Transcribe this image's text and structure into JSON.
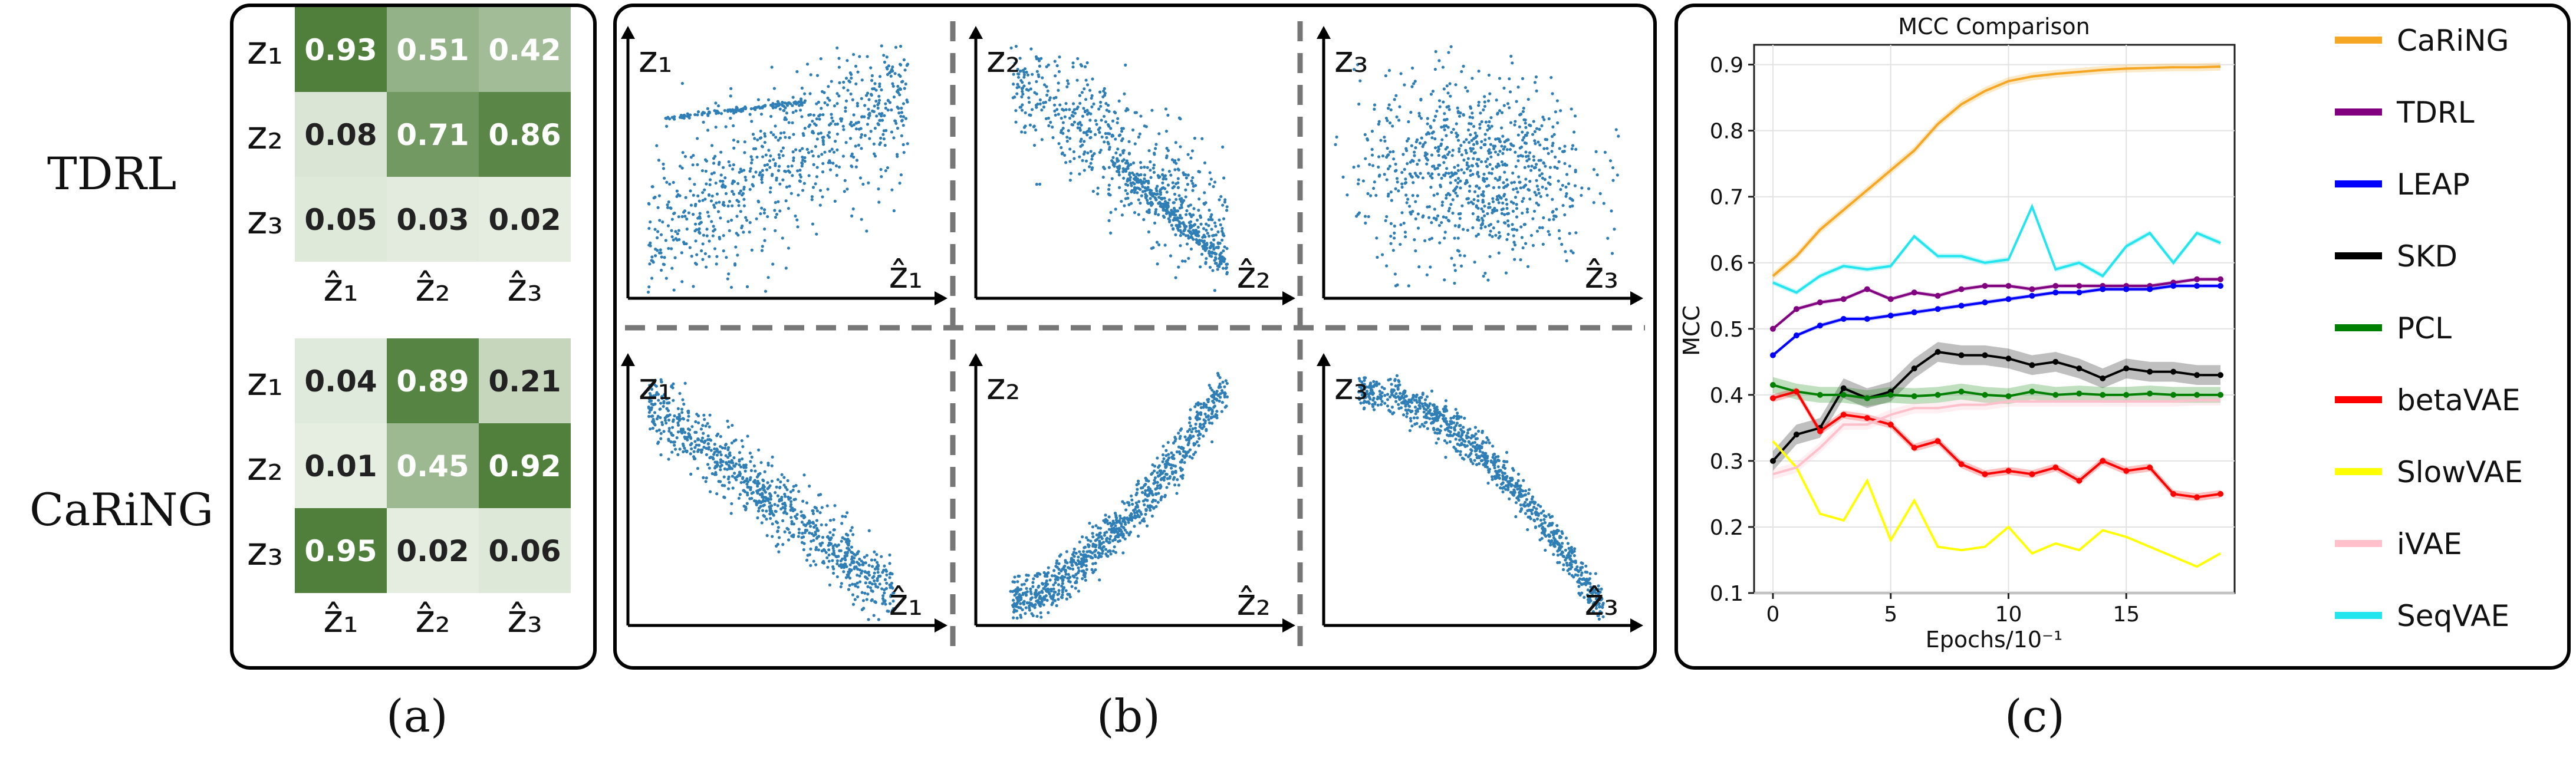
{
  "panel_a": {
    "row_labels": [
      "TDRL",
      "CaRiNG"
    ],
    "caption": "(a)",
    "tdrl": {
      "rows": [
        "z₁",
        "z₂",
        "z₃"
      ],
      "cols": [
        "ẑ₁",
        "ẑ₂",
        "ẑ₃"
      ],
      "values": [
        [
          0.93,
          0.51,
          0.42
        ],
        [
          0.08,
          0.71,
          0.86
        ],
        [
          0.05,
          0.03,
          0.02
        ]
      ],
      "labels": [
        [
          "0.93",
          "0.51",
          "0.42"
        ],
        [
          "0.08",
          "0.71",
          "0.86"
        ],
        [
          "0.05",
          "0.03",
          "0.02"
        ]
      ]
    },
    "caring": {
      "rows": [
        "z₁",
        "z₂",
        "z₃"
      ],
      "cols": [
        "ẑ₁",
        "ẑ₂",
        "ẑ₃"
      ],
      "values": [
        [
          0.04,
          0.89,
          0.21
        ],
        [
          0.01,
          0.45,
          0.92
        ],
        [
          0.95,
          0.02,
          0.06
        ]
      ],
      "labels": [
        [
          "0.04",
          "0.89",
          "0.21"
        ],
        [
          "0.01",
          "0.45",
          "0.92"
        ],
        [
          "0.95",
          "0.02",
          "0.06"
        ]
      ]
    },
    "colors": {
      "low": "#e7efe3",
      "high": "#4f7f3b"
    }
  },
  "panel_b": {
    "caption": "(b)",
    "point_color": "#2f7fb6",
    "plots": [
      {
        "ylabel": "z₁",
        "xlabel": "ẑ₁",
        "pattern": "tdrl1"
      },
      {
        "ylabel": "z₂",
        "xlabel": "ẑ₂",
        "pattern": "tdrl2"
      },
      {
        "ylabel": "z₃",
        "xlabel": "ẑ₃",
        "pattern": "tdrl3"
      },
      {
        "ylabel": "z₁",
        "xlabel": "ẑ₁",
        "pattern": "neg"
      },
      {
        "ylabel": "z₂",
        "xlabel": "ẑ₂",
        "pattern": "pos"
      },
      {
        "ylabel": "z₃",
        "xlabel": "ẑ₃",
        "pattern": "negcurve"
      }
    ]
  },
  "panel_c": {
    "caption": "(c)"
  },
  "chart_data": {
    "type": "line",
    "title": "MCC Comparison",
    "xlabel": "Epochs/10⁻¹",
    "ylabel": "MCC",
    "xlim": [
      -0.8,
      19.6
    ],
    "ylim": [
      0.1,
      0.93
    ],
    "xticks": [
      0,
      5,
      10,
      15
    ],
    "xtick_labels": [
      "0",
      "5",
      "10",
      "15"
    ],
    "yticks": [
      0.1,
      0.2,
      0.3,
      0.4,
      0.5,
      0.6,
      0.7,
      0.8,
      0.9
    ],
    "ytick_labels": [
      "0.1",
      "0.2",
      "0.3",
      "0.4",
      "0.5",
      "0.6",
      "0.7",
      "0.8",
      "0.9"
    ],
    "grid": true,
    "legend_position": "right-outside",
    "x": [
      0,
      1,
      2,
      3,
      4,
      5,
      6,
      7,
      8,
      9,
      10,
      11,
      12,
      13,
      14,
      15,
      16,
      17,
      18,
      19
    ],
    "series": [
      {
        "name": "CaRiNG",
        "color": "#f5a623",
        "markers": false,
        "band": 0.006,
        "values": [
          0.58,
          0.61,
          0.65,
          0.68,
          0.71,
          0.74,
          0.77,
          0.81,
          0.84,
          0.86,
          0.875,
          0.882,
          0.886,
          0.889,
          0.892,
          0.894,
          0.895,
          0.896,
          0.896,
          0.897
        ]
      },
      {
        "name": "TDRL",
        "color": "#800080",
        "markers": true,
        "band": 0.003,
        "values": [
          0.5,
          0.53,
          0.54,
          0.545,
          0.56,
          0.545,
          0.555,
          0.55,
          0.56,
          0.565,
          0.565,
          0.56,
          0.565,
          0.565,
          0.565,
          0.565,
          0.565,
          0.57,
          0.575,
          0.575
        ]
      },
      {
        "name": "LEAP",
        "color": "#0000ff",
        "markers": true,
        "band": 0.003,
        "values": [
          0.46,
          0.49,
          0.505,
          0.515,
          0.515,
          0.52,
          0.525,
          0.53,
          0.535,
          0.54,
          0.545,
          0.55,
          0.555,
          0.555,
          0.56,
          0.56,
          0.56,
          0.565,
          0.565,
          0.565
        ]
      },
      {
        "name": "SKD",
        "color": "#000000",
        "markers": true,
        "band": 0.015,
        "values": [
          0.3,
          0.34,
          0.35,
          0.41,
          0.395,
          0.405,
          0.44,
          0.465,
          0.46,
          0.46,
          0.455,
          0.445,
          0.45,
          0.44,
          0.425,
          0.44,
          0.435,
          0.435,
          0.43,
          0.43
        ]
      },
      {
        "name": "PCL",
        "color": "#008000",
        "markers": true,
        "band": 0.012,
        "values": [
          0.415,
          0.405,
          0.4,
          0.4,
          0.395,
          0.4,
          0.398,
          0.4,
          0.405,
          0.4,
          0.398,
          0.405,
          0.4,
          0.402,
          0.4,
          0.4,
          0.402,
          0.4,
          0.4,
          0.4
        ]
      },
      {
        "name": "betaVAE",
        "color": "#ff0000",
        "markers": true,
        "band": 0.006,
        "values": [
          0.395,
          0.405,
          0.345,
          0.37,
          0.365,
          0.355,
          0.32,
          0.33,
          0.295,
          0.28,
          0.285,
          0.28,
          0.29,
          0.27,
          0.3,
          0.285,
          0.29,
          0.25,
          0.245,
          0.25
        ]
      },
      {
        "name": "SlowVAE",
        "color": "#ffff00",
        "markers": false,
        "band": 0.0,
        "values": [
          0.33,
          0.29,
          0.22,
          0.21,
          0.27,
          0.18,
          0.24,
          0.17,
          0.165,
          0.17,
          0.2,
          0.16,
          0.175,
          0.165,
          0.195,
          0.185,
          0.17,
          0.155,
          0.14,
          0.16
        ]
      },
      {
        "name": "iVAE",
        "color": "#ffc0cb",
        "markers": false,
        "band": 0.008,
        "values": [
          0.28,
          0.29,
          0.32,
          0.355,
          0.355,
          0.37,
          0.38,
          0.38,
          0.385,
          0.385,
          0.39,
          0.39,
          0.39,
          0.39,
          0.39,
          0.39,
          0.39,
          0.39,
          0.392,
          0.392
        ]
      },
      {
        "name": "SeqVAE",
        "color": "#22e5ee",
        "markers": false,
        "band": 0.004,
        "values": [
          0.57,
          0.555,
          0.58,
          0.595,
          0.59,
          0.595,
          0.64,
          0.61,
          0.61,
          0.6,
          0.605,
          0.685,
          0.59,
          0.6,
          0.58,
          0.625,
          0.645,
          0.6,
          0.645,
          0.63
        ]
      }
    ]
  }
}
